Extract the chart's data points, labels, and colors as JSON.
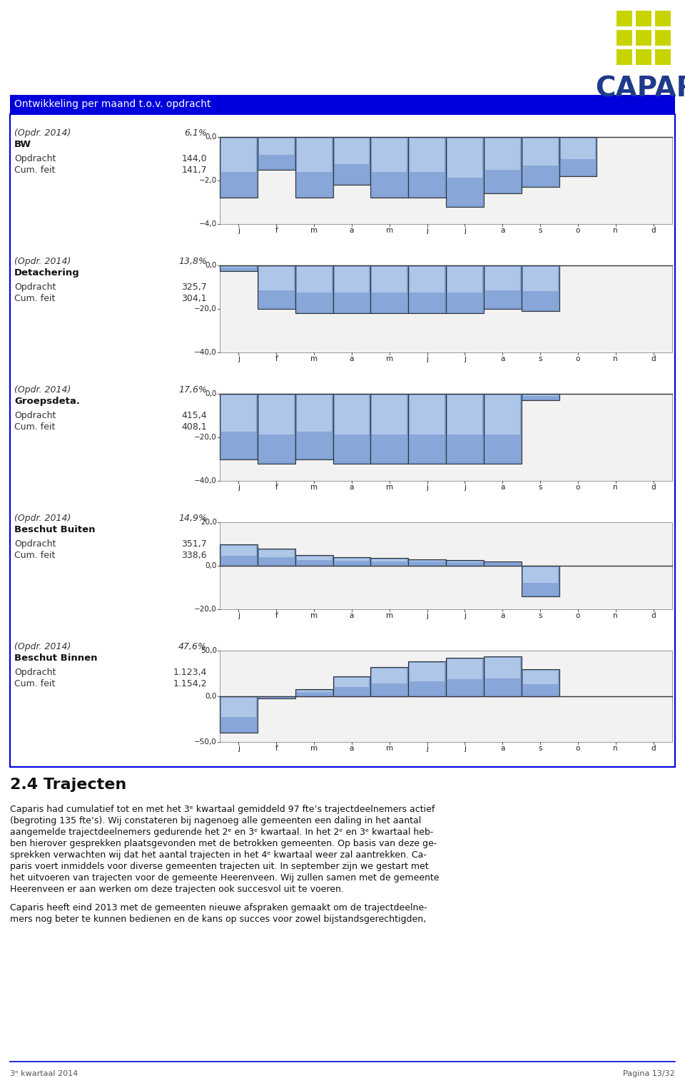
{
  "page_title": "Ontwikkeling per maand t.o.v. opdracht",
  "months": [
    "j",
    "f",
    "m",
    "a",
    "m",
    "j",
    "j",
    "a",
    "s",
    "o",
    "n",
    "d"
  ],
  "charts": [
    {
      "year_label": "(Opdr. 2014)",
      "pct_label": "6,1%",
      "bold_label": "BW",
      "opdracht_value": "144,0",
      "cumfeit_value": "141,7",
      "ylim": [
        -4.0,
        0.0
      ],
      "yticks": [
        0.0,
        -2.0,
        -4.0
      ],
      "bars": [
        -2.8,
        -1.5,
        -2.8,
        -2.2,
        -2.8,
        -2.8,
        -3.2,
        -2.6,
        -2.3,
        -1.8,
        0.0,
        0.0
      ]
    },
    {
      "year_label": "(Opdr. 2014)",
      "pct_label": "13,8%",
      "bold_label": "Detachering",
      "opdracht_value": "325,7",
      "cumfeit_value": "304,1",
      "ylim": [
        -40.0,
        0.0
      ],
      "yticks": [
        0.0,
        -20.0,
        -40.0
      ],
      "bars": [
        -2.5,
        -20.0,
        -22.0,
        -22.0,
        -22.0,
        -22.0,
        -22.0,
        -20.0,
        -21.0,
        0.0,
        0.0,
        0.0
      ]
    },
    {
      "year_label": "(Opdr. 2014)",
      "pct_label": "17,6%",
      "bold_label": "Groepsdeta.",
      "opdracht_value": "415,4",
      "cumfeit_value": "408,1",
      "ylim": [
        -40.0,
        0.0
      ],
      "yticks": [
        0.0,
        -20.0,
        -40.0
      ],
      "bars": [
        -30.0,
        -32.0,
        -30.0,
        -32.0,
        -32.0,
        -32.0,
        -32.0,
        -32.0,
        -3.0,
        0.0,
        0.0,
        0.0
      ]
    },
    {
      "year_label": "(Opdr. 2014)",
      "pct_label": "14,9%",
      "bold_label": "Beschut Buiten",
      "opdracht_value": "351,7",
      "cumfeit_value": "338,6",
      "ylim": [
        -20.0,
        20.0
      ],
      "yticks": [
        20.0,
        0.0,
        -20.0
      ],
      "bars": [
        10.0,
        8.0,
        5.0,
        4.0,
        3.5,
        3.0,
        2.5,
        2.0,
        -14.0,
        0.0,
        0.0,
        0.0
      ]
    },
    {
      "year_label": "(Opdr. 2014)",
      "pct_label": "47,6%",
      "bold_label": "Beschut Binnen",
      "opdracht_value": "1.123,4",
      "cumfeit_value": "1.154,2",
      "ylim": [
        -50.0,
        50.0
      ],
      "yticks": [
        50.0,
        0.0,
        -50.0
      ],
      "bars": [
        -40.0,
        -2.0,
        8.0,
        22.0,
        32.0,
        38.0,
        42.0,
        44.0,
        30.0,
        0.0,
        0.0,
        0.0
      ]
    }
  ],
  "section_title": "2.4 Trajecten",
  "body_paragraphs": [
    "Caparis had cumulatief tot en met het 3ᵉ kwartaal gemiddeld 97 fte’s trajectdeelnemers actief (begroting 135 fte’s). Wij constateren bij nagenoeg alle gemeenten een daling in het aantal aangemelde trajectdeelnemers gedurende het 2ᵉ en 3ᵉ kwartaal. In het 2ᵉ en 3ᵉ kwartaal heb-ben hierover gesprekken plaatsgevonden met de betrokken gemeenten. Op basis van deze ge-sprekken verwachten wij dat het aantal trajecten in het 4ᵉ kwartaal weer zal aantrekken. Ca-paris voert inmiddels voor diverse gemeenten trajecten uit. In september zijn we gestart met het uitvoeren van trajecten voor de gemeente Heerenveen. Wij zullen samen met de gemeente Heerenveen er aan werken om deze trajecten ook succesvol uit te voeren.",
    "Caparis heeft eind 2013 met de gemeenten nieuwe afspraken gemaakt om de trajectdeelne-mers nog beter te kunnen bedienen en de kans op succes voor zowel bijstandsgerechtigden,"
  ],
  "footer_left": "3ᵉ kwartaal 2014",
  "footer_right": "Pagina 13/32"
}
